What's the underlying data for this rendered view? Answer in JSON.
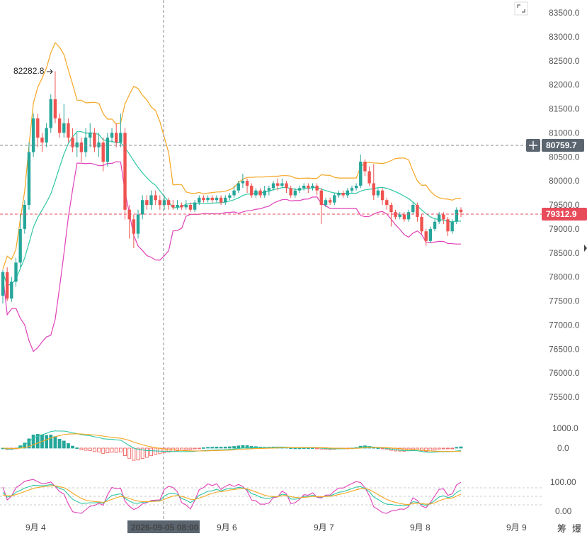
{
  "chart_data": {
    "type": "candlestick",
    "y_axis": {
      "ticks": [
        "83500.0",
        "83000.0",
        "82500.0",
        "82000.0",
        "81500.0",
        "81000.0",
        "80500.0",
        "80000.0",
        "79500.0",
        "79000.0",
        "78500.0",
        "78000.0",
        "77500.0",
        "77000.0",
        "76500.0",
        "76000.0",
        "75500.0"
      ],
      "range": [
        74900,
        83650
      ]
    },
    "x_axis": {
      "labels": [
        "9月 4",
        "9月 6",
        "9月 7",
        "9月 8",
        "9月 9"
      ],
      "cursor_label": "2026-09-05 08:00"
    },
    "crosshair_price": "80759.7",
    "last_price": "79312.9",
    "high_marker": "82282.8",
    "candles": [
      [
        77610,
        78100,
        77450,
        78150
      ],
      [
        78100,
        77550,
        77500,
        78200
      ],
      [
        77550,
        77900,
        77480,
        78000
      ],
      [
        77900,
        78300,
        77800,
        78400
      ],
      [
        78300,
        79000,
        78200,
        79300
      ],
      [
        79000,
        79500,
        78900,
        79600
      ],
      [
        79500,
        80600,
        79400,
        80800
      ],
      [
        80600,
        81300,
        80500,
        81400
      ],
      [
        81300,
        80900,
        80700,
        81400
      ],
      [
        80900,
        80800,
        80600,
        81000
      ],
      [
        80800,
        81100,
        80700,
        81200
      ],
      [
        81100,
        81700,
        81000,
        81800
      ],
      [
        81700,
        81300,
        81200,
        82283
      ],
      [
        81300,
        81000,
        80900,
        81400
      ],
      [
        81000,
        81200,
        80900,
        81600
      ],
      [
        81200,
        80900,
        80800,
        81300
      ],
      [
        80900,
        80700,
        80600,
        81100
      ],
      [
        80700,
        80800,
        80500,
        81000
      ],
      [
        80800,
        80600,
        80400,
        80900
      ],
      [
        80600,
        80900,
        80500,
        81100
      ],
      [
        80900,
        81000,
        80700,
        81200
      ],
      [
        81000,
        80700,
        80600,
        81100
      ],
      [
        80700,
        80800,
        80500,
        81000
      ],
      [
        80800,
        80400,
        80200,
        80900
      ],
      [
        80400,
        80900,
        80300,
        81000
      ],
      [
        80900,
        81000,
        80800,
        81100
      ],
      [
        81000,
        80800,
        80700,
        81200
      ],
      [
        80800,
        81000,
        80700,
        81400
      ],
      [
        81000,
        79400,
        79200,
        81100
      ],
      [
        79400,
        79200,
        78800,
        79500
      ],
      [
        79200,
        78900,
        78600,
        79300
      ],
      [
        78900,
        79300,
        78800,
        79400
      ],
      [
        79300,
        79600,
        79200,
        79700
      ],
      [
        79600,
        79500,
        79400,
        79700
      ],
      [
        79500,
        79700,
        79400,
        79800
      ],
      [
        79700,
        79600,
        79500,
        79800
      ],
      [
        79600,
        79500,
        79400,
        79700
      ],
      [
        79500,
        79600,
        79400,
        79700
      ],
      [
        79600,
        79500,
        79400,
        79650
      ],
      [
        79500,
        79450,
        79400,
        79600
      ],
      [
        79450,
        79500,
        79400,
        79600
      ],
      [
        79500,
        79450,
        79400,
        79550
      ],
      [
        79450,
        79500,
        79400,
        79600
      ],
      [
        79500,
        79400,
        79350,
        79550
      ],
      [
        79400,
        79550,
        79350,
        79600
      ],
      [
        79550,
        79650,
        79500,
        79700
      ],
      [
        79650,
        79600,
        79550,
        79700
      ],
      [
        79600,
        79650,
        79550,
        79700
      ],
      [
        79650,
        79600,
        79550,
        79700
      ],
      [
        79600,
        79650,
        79550,
        79700
      ],
      [
        79650,
        79550,
        79500,
        79700
      ],
      [
        79550,
        79650,
        79500,
        79700
      ],
      [
        79650,
        79700,
        79600,
        79750
      ],
      [
        79700,
        79800,
        79650,
        79900
      ],
      [
        79800,
        79950,
        79750,
        80000
      ],
      [
        79950,
        80000,
        79850,
        80150
      ],
      [
        80000,
        79900,
        79750,
        80050
      ],
      [
        79900,
        79700,
        79650,
        79950
      ],
      [
        79700,
        79800,
        79650,
        79850
      ],
      [
        79800,
        79700,
        79650,
        79850
      ],
      [
        79700,
        79800,
        79650,
        79900
      ],
      [
        79800,
        79850,
        79700,
        79900
      ],
      [
        79850,
        79950,
        79800,
        80000
      ],
      [
        79950,
        79900,
        79800,
        80050
      ],
      [
        79900,
        79950,
        79850,
        80050
      ],
      [
        79950,
        79850,
        79750,
        80000
      ],
      [
        79850,
        79700,
        79650,
        79900
      ],
      [
        79700,
        79800,
        79650,
        79850
      ],
      [
        79800,
        79850,
        79750,
        79900
      ],
      [
        79850,
        79900,
        79800,
        79950
      ],
      [
        79900,
        79850,
        79750,
        79950
      ],
      [
        79850,
        79900,
        79800,
        79950
      ],
      [
        79900,
        79800,
        79700,
        79950
      ],
      [
        79800,
        79500,
        79100,
        79850
      ],
      [
        79500,
        79600,
        79450,
        79650
      ],
      [
        79600,
        79550,
        79500,
        79650
      ],
      [
        79550,
        79700,
        79500,
        79750
      ],
      [
        79700,
        79750,
        79650,
        79800
      ],
      [
        79750,
        79700,
        79650,
        79800
      ],
      [
        79700,
        79800,
        79650,
        79850
      ],
      [
        79800,
        79850,
        79750,
        79900
      ],
      [
        79850,
        79900,
        79800,
        79950
      ],
      [
        79900,
        80400,
        79850,
        80550
      ],
      [
        80400,
        80200,
        80100,
        80450
      ],
      [
        80200,
        79950,
        79900,
        80300
      ],
      [
        79950,
        79700,
        79600,
        80350
      ],
      [
        79700,
        79800,
        79650,
        79850
      ],
      [
        79800,
        79600,
        79500,
        79850
      ],
      [
        79600,
        79500,
        79400,
        79650
      ],
      [
        79500,
        79350,
        79050,
        79550
      ],
      [
        79350,
        79250,
        79200,
        79400
      ],
      [
        79250,
        79300,
        79200,
        79350
      ],
      [
        79300,
        79200,
        79150,
        79350
      ],
      [
        79200,
        79350,
        79150,
        79400
      ],
      [
        79350,
        79500,
        79300,
        79550
      ],
      [
        79500,
        79250,
        79150,
        79550
      ],
      [
        79250,
        78950,
        78900,
        79300
      ],
      [
        78950,
        78750,
        78650,
        79000
      ],
      [
        78750,
        79000,
        78700,
        79050
      ],
      [
        79000,
        79150,
        78950,
        79200
      ],
      [
        79150,
        79300,
        79100,
        79350
      ],
      [
        79300,
        79200,
        79100,
        79350
      ],
      [
        79200,
        78950,
        78850,
        79250
      ],
      [
        78950,
        79150,
        78900,
        79200
      ],
      [
        79150,
        79400,
        79100,
        79450
      ],
      [
        79400,
        79350,
        79250,
        79450
      ]
    ],
    "macd_axis_ticks": [
      "1000.0",
      "0.0"
    ],
    "kdj_axis_ticks": [
      "100.00",
      "0.00"
    ],
    "side_labels": [
      "筹",
      "爆"
    ],
    "colors": {
      "up": "#26a69a",
      "down": "#ef5350",
      "ma": "#2ec7a3",
      "boll_upper": "#f5a623",
      "boll_lower": "#e040b8",
      "last_price_bg": "#e84b5a",
      "crosshair_bg": "#5b6570"
    }
  }
}
